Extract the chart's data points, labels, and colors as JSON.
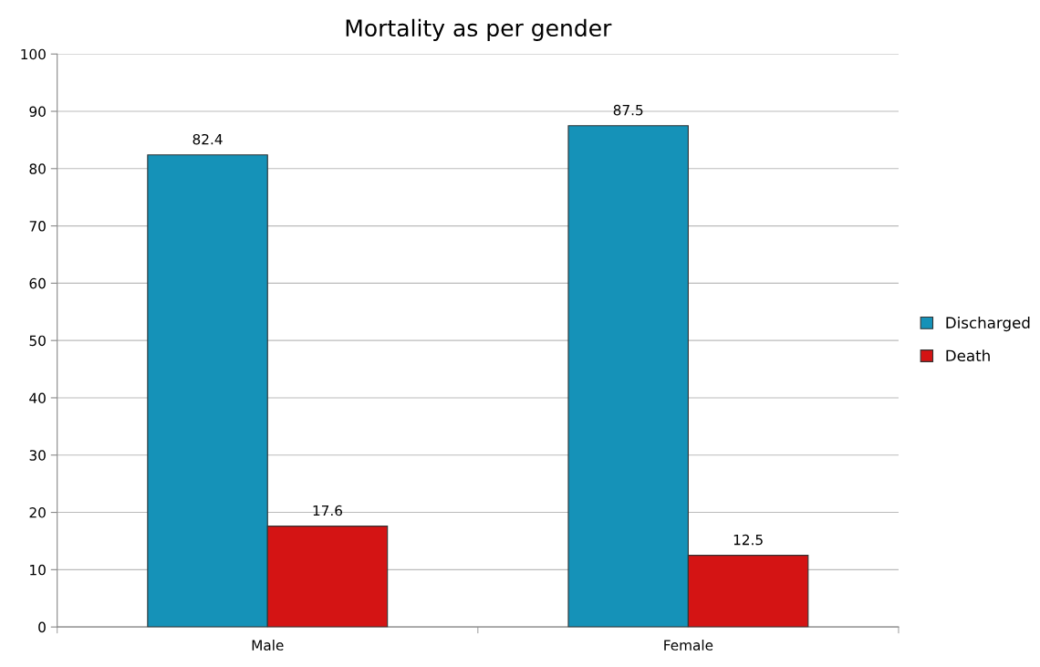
{
  "chart_data": {
    "type": "bar",
    "title": "Mortality as per gender",
    "categories": [
      "Male",
      "Female"
    ],
    "series": [
      {
        "name": "Discharged",
        "color": "#1592b8",
        "values": [
          82.4,
          87.5
        ]
      },
      {
        "name": "Death",
        "color": "#d41414",
        "values": [
          17.6,
          12.5
        ]
      }
    ],
    "ylim": [
      0,
      100
    ],
    "yticks": [
      0,
      10,
      20,
      30,
      40,
      50,
      60,
      70,
      80,
      90,
      100
    ],
    "grid": "y",
    "legend": "right",
    "data_labels": true
  }
}
